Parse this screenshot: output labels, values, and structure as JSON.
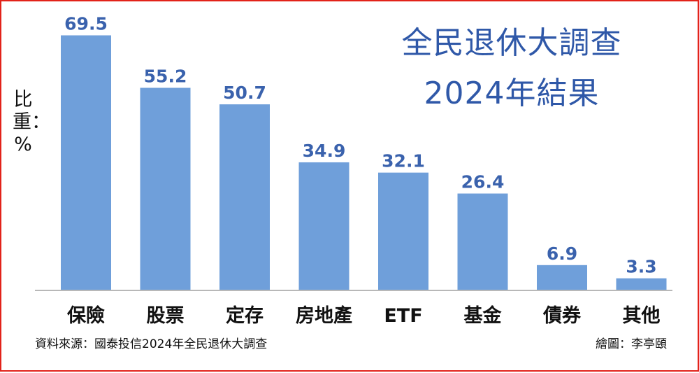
{
  "chart_data": {
    "type": "bar",
    "title": "全民退休大調查",
    "subtitle": "2024年結果",
    "ylabel": "比重：%",
    "categories": [
      "保險",
      "股票",
      "定存",
      "房地產",
      "ETF",
      "基金",
      "債券",
      "其他"
    ],
    "values": [
      69.5,
      55.2,
      50.7,
      34.9,
      32.1,
      26.4,
      6.9,
      3.3
    ],
    "value_labels": [
      "69.5",
      "55.2",
      "50.7",
      "34.9",
      "32.1",
      "26.4",
      "6.9",
      "3.3"
    ],
    "ylim": [
      0,
      71.5
    ],
    "grid": false,
    "legend": "none",
    "bar_color": "#6f9fda",
    "value_label_color": "#3a62ad",
    "title_color": "#2f58a8",
    "axis_color": "#b8b8b8"
  },
  "footer": {
    "source": "資料來源：國泰投信2024年全民退休大調查",
    "credit": "繪圖：李亭頤"
  }
}
